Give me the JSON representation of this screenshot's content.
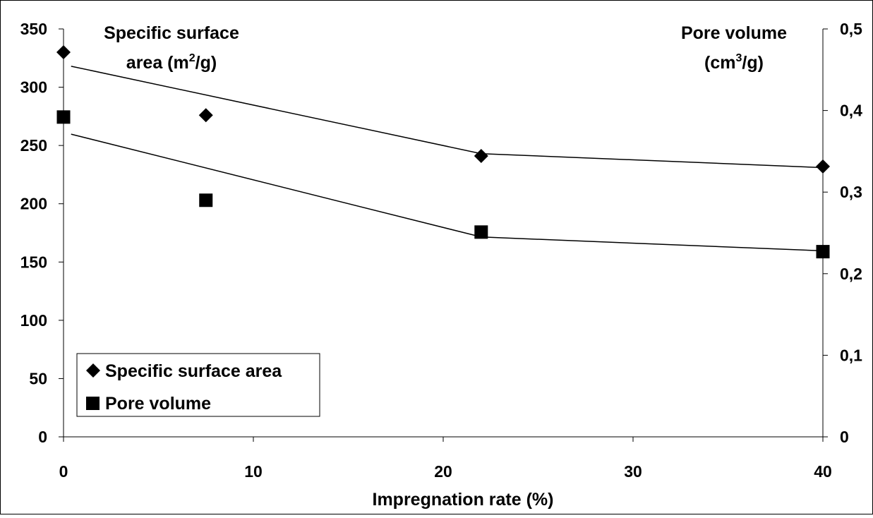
{
  "chart_data": {
    "type": "scatter",
    "x": [
      0,
      7.5,
      22,
      40
    ],
    "xlabel": "Impregnation rate (%)",
    "xlim": [
      0,
      40
    ],
    "xticks": [
      "0",
      "10",
      "20",
      "30",
      "40"
    ],
    "xtick_values": [
      0,
      10,
      20,
      30,
      40
    ],
    "left_axis": {
      "title_line1": "Specific surface",
      "title_line2_prefix": "area (m",
      "title_line2_sup": "2",
      "title_line2_suffix": "/g)",
      "ylim": [
        0,
        350
      ],
      "ticks": [
        "0",
        "50",
        "100",
        "150",
        "200",
        "250",
        "300",
        "350"
      ],
      "tick_values": [
        0,
        50,
        100,
        150,
        200,
        250,
        300,
        350
      ]
    },
    "right_axis": {
      "title_line1": "Pore volume",
      "title_line2_prefix": "(cm",
      "title_line2_sup": "3",
      "title_line2_suffix": "/g)",
      "ylim": [
        0,
        0.5
      ],
      "ticks": [
        "0",
        "0,1",
        "0,2",
        "0,3",
        "0,4",
        "0,5"
      ],
      "tick_values": [
        0,
        0.1,
        0.2,
        0.3,
        0.4,
        0.5
      ]
    },
    "series": [
      {
        "name": "Specific surface area",
        "axis": "left",
        "marker": "diamond",
        "values": [
          330,
          276,
          241,
          232
        ],
        "trend": {
          "x": [
            0.4,
            22,
            40
          ],
          "y": [
            318,
            243,
            231
          ]
        }
      },
      {
        "name": "Pore volume",
        "axis": "right",
        "marker": "square",
        "values": [
          0.392,
          0.29,
          0.251,
          0.227
        ],
        "trend": {
          "x": [
            0.4,
            22,
            40
          ],
          "y": [
            0.371,
            0.245,
            0.228
          ]
        }
      }
    ],
    "legend": "bottom-left",
    "grid": false,
    "colors": {
      "marker": "#000000",
      "line": "#000000",
      "background": "#ffffff"
    }
  }
}
